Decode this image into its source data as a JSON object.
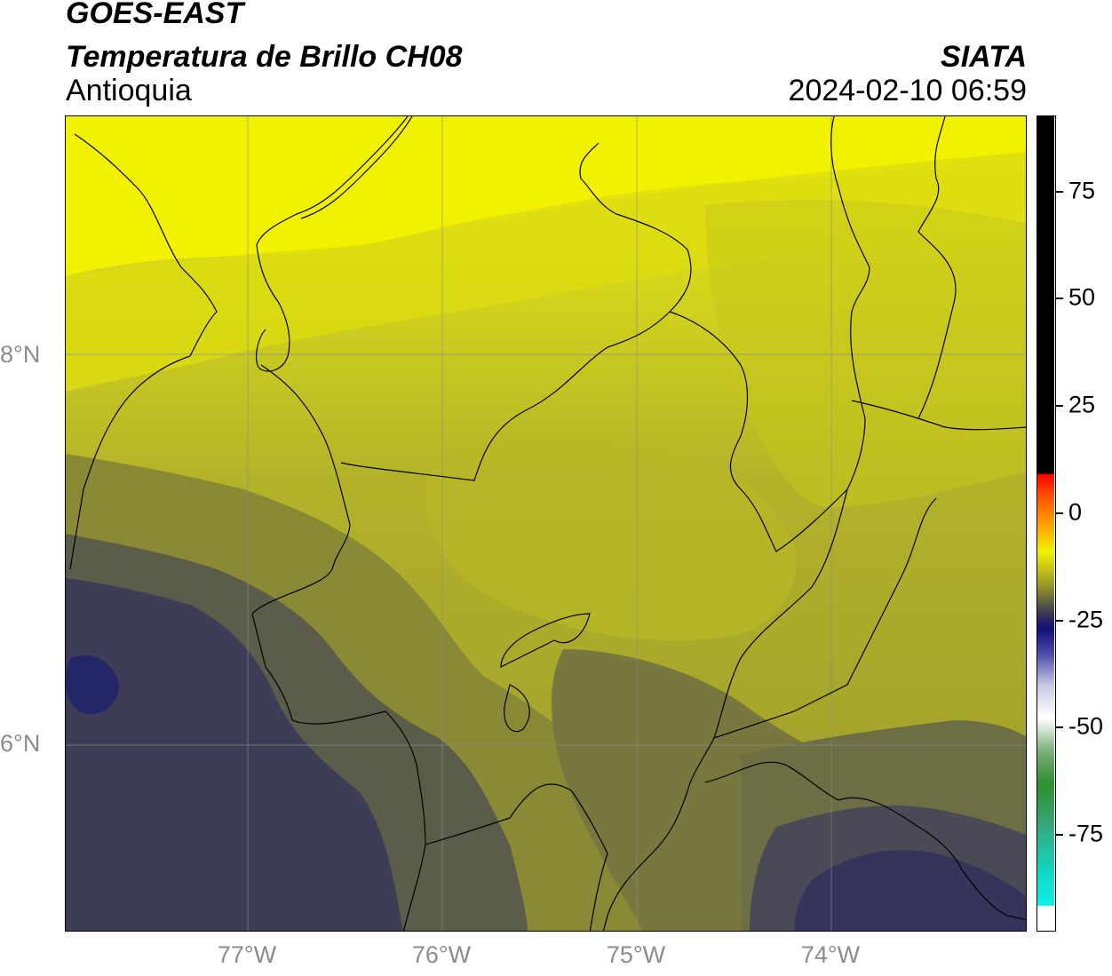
{
  "header": {
    "title_line1": "GOES-EAST",
    "title_line2": "Temperatura de Brillo CH08",
    "title_line3": "Antioquia",
    "org": "SIATA",
    "datetime": "2024-02-10 06:59"
  },
  "map": {
    "region": "Antioquia",
    "lon_ticks": [
      "77°W",
      "76°W",
      "75°W",
      "74°W"
    ],
    "lat_ticks": [
      "8°N",
      "6°N"
    ],
    "lon_range": [
      -77.93,
      -73.0
    ],
    "lat_range": [
      5.07,
      9.27
    ],
    "gridlines": true
  },
  "colorbar": {
    "ticks": [
      "75",
      "50",
      "25",
      "0",
      "-25",
      "-50",
      "-75"
    ],
    "range": [
      -95,
      92
    ],
    "colors": {
      "black": "#000000",
      "red": "#ff0000",
      "orange": "#ff8c00",
      "yellow": "#f3f300",
      "olive": "#8f8f2c",
      "slate": "#3b3b55",
      "navy": "#10107a",
      "white": "#ffffff",
      "green": "#2f8f2f",
      "cyan": "#10e8e0"
    }
  }
}
